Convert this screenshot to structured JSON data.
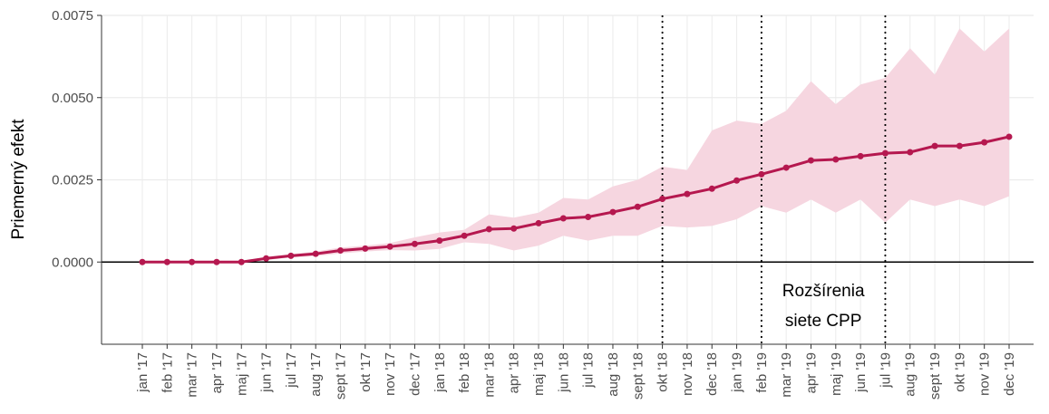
{
  "chart_data": {
    "type": "line",
    "y_label": "Priemerný efekt",
    "categories": [
      "jan '17",
      "feb '17",
      "mar '17",
      "apr '17",
      "maj '17",
      "jun '17",
      "jul '17",
      "aug '17",
      "sept '17",
      "okt '17",
      "nov '17",
      "dec '17",
      "jan '18",
      "feb '18",
      "mar '18",
      "apr '18",
      "maj '18",
      "jun '18",
      "jul '18",
      "aug '18",
      "sept '18",
      "okt '18",
      "nov '18",
      "dec '18",
      "jan '19",
      "feb '19",
      "mar '19",
      "apr '19",
      "maj '19",
      "jun '19",
      "jul '19",
      "aug '19",
      "sept '19",
      "okt '19",
      "nov '19",
      "dec '19"
    ],
    "values": [
      0,
      0,
      0,
      0,
      0,
      0.00011,
      0.00019,
      0.00025,
      0.00035,
      0.00041,
      0.00047,
      0.00055,
      0.00065,
      0.0008,
      0.001,
      0.00102,
      0.00118,
      0.00133,
      0.00137,
      0.00152,
      0.00168,
      0.00192,
      0.00207,
      0.00223,
      0.00248,
      0.00267,
      0.00287,
      0.00309,
      0.00312,
      0.00322,
      0.00331,
      0.00334,
      0.00353,
      0.00353,
      0.00364,
      0.00381
    ],
    "ci_upper": [
      0,
      0,
      0,
      0,
      2e-05,
      0.00016,
      0.00024,
      0.00032,
      0.00044,
      0.0005,
      0.00058,
      0.00075,
      0.0009,
      0.00098,
      0.00145,
      0.00135,
      0.0015,
      0.00195,
      0.0019,
      0.0023,
      0.0025,
      0.0029,
      0.0028,
      0.004,
      0.0043,
      0.0042,
      0.0046,
      0.0055,
      0.0048,
      0.0054,
      0.0056,
      0.0065,
      0.0057,
      0.0071,
      0.0064,
      0.0071
    ],
    "ci_lower": [
      0,
      0,
      0,
      0,
      0,
      6e-05,
      0.00014,
      0.00018,
      0.00026,
      0.00032,
      0.00036,
      0.00035,
      0.0004,
      0.0006,
      0.00055,
      0.00035,
      0.0005,
      0.0008,
      0.00065,
      0.0008,
      0.0008,
      0.0011,
      0.00105,
      0.0011,
      0.0013,
      0.0017,
      0.0015,
      0.0019,
      0.0015,
      0.0019,
      0.0012,
      0.0019,
      0.0017,
      0.0019,
      0.0017,
      0.002
    ],
    "color": "#b5184f",
    "band_color": "#f6d6e0",
    "ylim": [
      -0.0025,
      0.0075
    ],
    "yticks": [
      {
        "value": 0,
        "label": "0.0000"
      },
      {
        "value": 0.0025,
        "label": "0.0025"
      },
      {
        "value": 0.005,
        "label": "0.0050"
      },
      {
        "value": 0.0075,
        "label": "0.0075"
      }
    ],
    "vlines": [
      "okt '18",
      "feb '19",
      "jul '19"
    ],
    "annotation": [
      "Rozšírenia",
      "siete CPP"
    ],
    "grid": true
  }
}
